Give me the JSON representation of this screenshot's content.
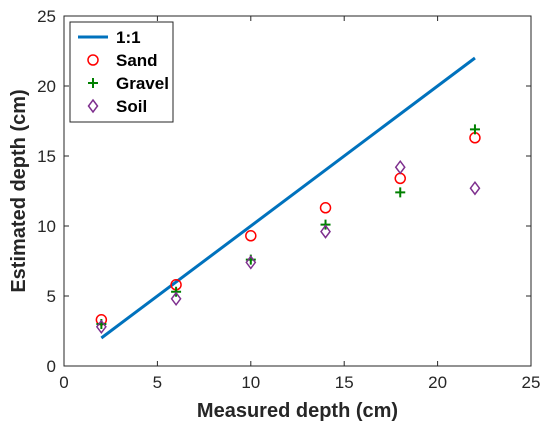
{
  "chart_data": {
    "type": "scatter",
    "title": "",
    "xlabel": "Measured depth (cm)",
    "ylabel": "Estimated depth (cm)",
    "xlim": [
      0,
      25
    ],
    "ylim": [
      0,
      25
    ],
    "xticks": [
      0,
      5,
      10,
      15,
      20,
      25
    ],
    "yticks": [
      0,
      5,
      10,
      15,
      20,
      25
    ],
    "grid": false,
    "legend_position": "top-left",
    "series": [
      {
        "name": "1:1",
        "kind": "line",
        "color": "#0072BD",
        "points": [
          [
            2,
            2
          ],
          [
            22,
            22
          ]
        ]
      },
      {
        "name": "Sand",
        "kind": "marker",
        "marker": "circle",
        "color": "#FF0000",
        "points": [
          [
            2,
            3.3
          ],
          [
            6,
            5.8
          ],
          [
            10,
            9.3
          ],
          [
            14,
            11.3
          ],
          [
            18,
            13.4
          ],
          [
            22,
            16.3
          ]
        ]
      },
      {
        "name": "Gravel",
        "kind": "marker",
        "marker": "plus",
        "color": "#008000",
        "points": [
          [
            2,
            3.0
          ],
          [
            6,
            5.3
          ],
          [
            10,
            7.6
          ],
          [
            14,
            10.1
          ],
          [
            18,
            12.4
          ],
          [
            22,
            16.9
          ]
        ]
      },
      {
        "name": "Soil",
        "kind": "marker",
        "marker": "diamond",
        "color": "#7E2F8E",
        "points": [
          [
            2,
            2.8
          ],
          [
            6,
            4.8
          ],
          [
            10,
            7.4
          ],
          [
            14,
            9.6
          ],
          [
            18,
            14.2
          ],
          [
            22,
            12.7
          ]
        ]
      }
    ]
  }
}
